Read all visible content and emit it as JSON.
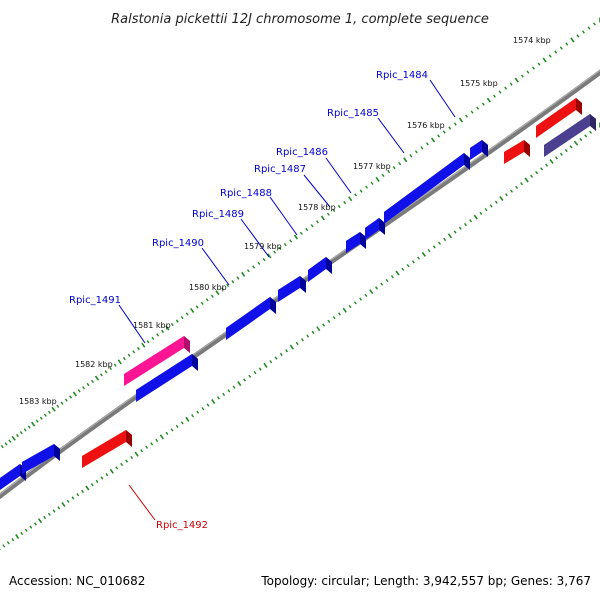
{
  "title": "Ralstonia pickettii 12J chromosome 1, complete sequence",
  "colors": {
    "forward_gene": "#1010e8",
    "reverse_gene": "#ee1111",
    "highlight_gene": "#ff1493",
    "dark_gene": "#4b3f8f",
    "backbone": "#7a7a7a",
    "tick": "#1e8a1e",
    "label_forward": "#0000cc",
    "label_reverse": "#cc0000"
  },
  "tick_labels": [
    "1574 kbp",
    "1575 kbp",
    "1576 kbp",
    "1577 kbp",
    "1578 kbp",
    "1579 kbp",
    "1580 kbp",
    "1581 kbp",
    "1582 kbp",
    "1583 kbp"
  ],
  "gene_labels": [
    {
      "text": "Rpic_1484",
      "strand": "forward"
    },
    {
      "text": "Rpic_1485",
      "strand": "forward"
    },
    {
      "text": "Rpic_1486",
      "strand": "forward"
    },
    {
      "text": "Rpic_1487",
      "strand": "forward"
    },
    {
      "text": "Rpic_1488",
      "strand": "forward"
    },
    {
      "text": "Rpic_1489",
      "strand": "forward"
    },
    {
      "text": "Rpic_1490",
      "strand": "forward"
    },
    {
      "text": "Rpic_1491",
      "strand": "forward"
    },
    {
      "text": "Rpic_1492",
      "strand": "reverse"
    }
  ],
  "footer": {
    "accession": "Accession: NC_010682",
    "topology": "Topology: circular; Length: 3,942,557 bp; Genes: 3,767"
  }
}
